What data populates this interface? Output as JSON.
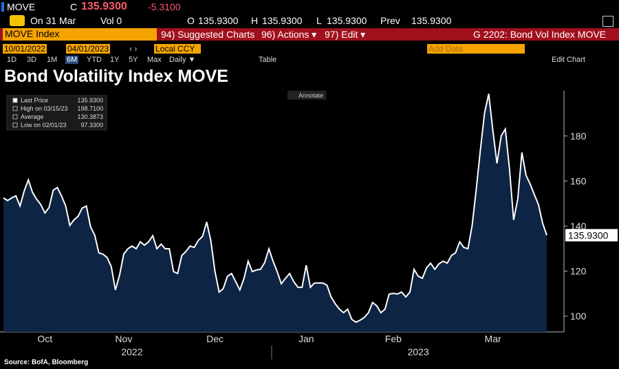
{
  "ui": {
    "ticker": "MOVE",
    "c_label": "C",
    "last": "135.9300",
    "change": "-5.3100",
    "on_label": "On 31 Mar",
    "vol_label": "Vol 0",
    "o_label": "O",
    "o_value": "135.9300",
    "h_label": "H",
    "h_value": "135.9300",
    "l_label": "L",
    "l_value": "135.9300",
    "prev_label": "Prev",
    "prev_value": "135.9300",
    "security": "MOVE Index",
    "menu": [
      "94) Suggested Charts",
      "96) Actions ▾",
      "97) Edit ▾"
    ],
    "function": "G 2202: Bond Vol Index MOVE",
    "start_date": "10/01/2022",
    "end_date": "04/01/2023",
    "currency": "Local CCY",
    "add_data": "Add Data",
    "ranges": [
      "1D",
      "3D",
      "1M",
      "6M",
      "YTD",
      "1Y",
      "5Y",
      "Max"
    ],
    "frequency": "Daily ▼",
    "table": "Table",
    "edit_chart": "Edit Chart",
    "annotate": "Annotate"
  },
  "chart_data": {
    "type": "area",
    "title": "Bond Volatility Index MOVE",
    "source": "Source: BofA, Bloomberg",
    "categories": [
      null,
      null,
      null,
      null,
      null,
      null,
      null,
      null,
      null,
      null,
      "Oct",
      null,
      null,
      null,
      null,
      null,
      null,
      null,
      null,
      null,
      null,
      null,
      null,
      null,
      null,
      null,
      null,
      null,
      null,
      "Nov",
      null,
      null,
      null,
      null,
      null,
      null,
      null,
      null,
      null,
      null,
      null,
      null,
      null,
      null,
      null,
      null,
      null,
      null,
      null,
      null,
      null,
      "Dec",
      null,
      null,
      null,
      null,
      null,
      null,
      null,
      null,
      null,
      null,
      null,
      null,
      null,
      null,
      null,
      null,
      null,
      null,
      null,
      null,
      null,
      "Jan",
      null,
      null,
      null,
      null,
      null,
      null,
      null,
      null,
      null,
      null,
      null,
      null,
      null,
      null,
      null,
      null,
      null,
      null,
      null,
      null,
      "Feb",
      null,
      null,
      null,
      null,
      null,
      null,
      null,
      null,
      null,
      null,
      null,
      null,
      null,
      null,
      null,
      null,
      null,
      null,
      null,
      null,
      null,
      null,
      null,
      "Mar",
      null,
      null,
      null,
      null,
      null,
      null,
      null,
      null,
      null,
      null,
      null,
      null,
      null
    ],
    "years": [
      null,
      null,
      null,
      null,
      null,
      null,
      null,
      null,
      null,
      null,
      null,
      null,
      null,
      null,
      null,
      null,
      null,
      null,
      null,
      null,
      null,
      null,
      null,
      null,
      null,
      null,
      null,
      null,
      null,
      null,
      null,
      "2022",
      null,
      null,
      null,
      null,
      null,
      null,
      null,
      null,
      null,
      null,
      null,
      null,
      null,
      null,
      null,
      null,
      null,
      null,
      null,
      null,
      null,
      null,
      null,
      null,
      null,
      null,
      null,
      null,
      null,
      null,
      null,
      null,
      null,
      null,
      null,
      null,
      null,
      null,
      null,
      null,
      null,
      null,
      null,
      null,
      null,
      null,
      null,
      null,
      null,
      null,
      null,
      null,
      null,
      null,
      null,
      null,
      null,
      null,
      null,
      null,
      null,
      null,
      null,
      null,
      null,
      null,
      null,
      null,
      "2023",
      null,
      null,
      null,
      null,
      null,
      null,
      null,
      null,
      null,
      null,
      null,
      null,
      null,
      null,
      null,
      null,
      null,
      null,
      null,
      null,
      null,
      null,
      null,
      null,
      null,
      null,
      null,
      null,
      null,
      null,
      null
    ],
    "values": [
      152.5,
      151.3,
      152.5,
      153.4,
      148.9,
      155.6,
      160.5,
      155,
      151.9,
      149.5,
      145.8,
      148.2,
      155.9,
      157.1,
      153.4,
      148.9,
      140.3,
      142.7,
      144.3,
      148,
      148.9,
      139.7,
      136,
      128.1,
      127.5,
      126,
      122,
      111.6,
      118.3,
      127.5,
      129.9,
      131.1,
      129.9,
      133,
      131.5,
      133,
      135.7,
      129.9,
      132,
      129.9,
      129.9,
      119.8,
      118.9,
      126.9,
      128.7,
      131.1,
      130.5,
      133.6,
      135.4,
      141.8,
      133.6,
      119.8,
      110.7,
      112.2,
      117.7,
      118.9,
      115.3,
      111.6,
      116.8,
      124.4,
      119.8,
      120.5,
      120.8,
      123.8,
      129.9,
      124.4,
      119.8,
      114.4,
      116.8,
      118.9,
      115.3,
      112.8,
      112.8,
      122.6,
      112.8,
      114.7,
      114.7,
      114.7,
      113.7,
      108.5,
      105.5,
      103.1,
      101.5,
      103.1,
      98.5,
      97.33,
      98.2,
      99.4,
      101.5,
      106.1,
      104.6,
      101.5,
      103.1,
      109.8,
      110.1,
      109.8,
      110.7,
      108.5,
      110.7,
      120.8,
      117.7,
      116.8,
      121.4,
      123.5,
      120.8,
      123.2,
      124.4,
      123.5,
      126.9,
      128.1,
      133,
      130.5,
      129.9,
      140.3,
      156.5,
      173.9,
      190.1,
      198.71,
      182.4,
      167.8,
      180,
      183.1,
      165.6,
      142.7,
      151.9,
      172.7,
      162.6,
      158.6,
      154,
      149.5,
      141.2,
      135.93
    ],
    "color": "#ffffff",
    "fill": "#0d2444",
    "last_label": "135.9300",
    "legend": [
      {
        "label": "Last Price",
        "value": "135.9300"
      },
      {
        "label": "High on 03/15/23",
        "value": "198.7100"
      },
      {
        "label": "Average",
        "value": "130.3873"
      },
      {
        "label": "Low on 02/01/23",
        "value": "97.3300"
      }
    ],
    "ylim": [
      93,
      201
    ],
    "yticks": [
      100,
      120,
      140,
      160,
      180
    ],
    "grid": false
  }
}
